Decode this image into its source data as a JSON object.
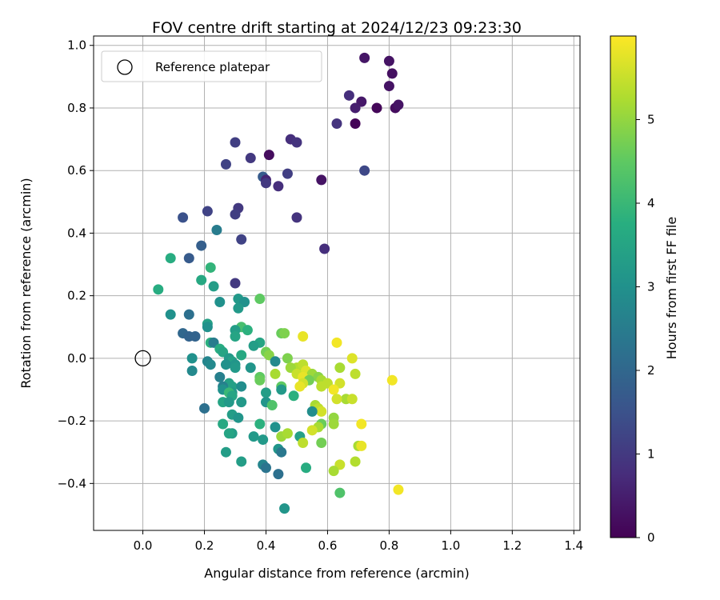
{
  "chart_data": {
    "type": "scatter",
    "title": "FOV centre drift starting at 2024/12/23 09:23:30",
    "xlabel": "Angular distance from reference (arcmin)",
    "ylabel": "Rotation from reference (arcmin)",
    "xlim": [
      -0.16,
      1.42
    ],
    "ylim": [
      -0.55,
      1.03
    ],
    "xticks": [
      0.0,
      0.2,
      0.4,
      0.6,
      0.8,
      1.0,
      1.2,
      1.4
    ],
    "xtick_labels": [
      "0.0",
      "0.2",
      "0.4",
      "0.6",
      "0.8",
      "1.0",
      "1.2",
      "1.4"
    ],
    "yticks": [
      -0.4,
      -0.2,
      0.0,
      0.2,
      0.4,
      0.6,
      0.8,
      1.0
    ],
    "ytick_labels": [
      "−0.4",
      "−0.2",
      "0.0",
      "0.2",
      "0.4",
      "0.6",
      "0.8",
      "1.0"
    ],
    "grid": true,
    "colormap": "viridis",
    "legend": {
      "placement": "top-left",
      "entries": [
        "Reference platepar"
      ]
    },
    "reference_point": {
      "x": 0.0,
      "y": 0.0
    },
    "colorbar": {
      "label": "Hours from first FF file",
      "range": [
        0,
        6.0
      ],
      "ticks": [
        0,
        1,
        2,
        3,
        4,
        5
      ],
      "tick_labels": [
        "0",
        "1",
        "2",
        "3",
        "4",
        "5"
      ]
    },
    "points": [
      {
        "x": 0.72,
        "y": 0.96,
        "c": 0.35
      },
      {
        "x": 0.8,
        "y": 0.95,
        "c": 0.3
      },
      {
        "x": 0.81,
        "y": 0.91,
        "c": 0.25
      },
      {
        "x": 0.8,
        "y": 0.87,
        "c": 0.3
      },
      {
        "x": 0.67,
        "y": 0.84,
        "c": 0.8
      },
      {
        "x": 0.71,
        "y": 0.82,
        "c": 0.4
      },
      {
        "x": 0.69,
        "y": 0.8,
        "c": 0.5
      },
      {
        "x": 0.76,
        "y": 0.8,
        "c": 0.1
      },
      {
        "x": 0.82,
        "y": 0.8,
        "c": 0.2
      },
      {
        "x": 0.83,
        "y": 0.81,
        "c": 0.3
      },
      {
        "x": 0.63,
        "y": 0.75,
        "c": 0.9
      },
      {
        "x": 0.69,
        "y": 0.75,
        "c": 0.05
      },
      {
        "x": 0.48,
        "y": 0.7,
        "c": 0.8
      },
      {
        "x": 0.5,
        "y": 0.69,
        "c": 0.9
      },
      {
        "x": 0.3,
        "y": 0.69,
        "c": 1.1
      },
      {
        "x": 0.41,
        "y": 0.65,
        "c": 0.2
      },
      {
        "x": 0.35,
        "y": 0.64,
        "c": 1.0
      },
      {
        "x": 0.27,
        "y": 0.62,
        "c": 1.2
      },
      {
        "x": 0.72,
        "y": 0.6,
        "c": 1.3
      },
      {
        "x": 0.47,
        "y": 0.59,
        "c": 1.1
      },
      {
        "x": 0.39,
        "y": 0.58,
        "c": 1.7
      },
      {
        "x": 0.4,
        "y": 0.57,
        "c": 0.6
      },
      {
        "x": 0.58,
        "y": 0.57,
        "c": 0.3
      },
      {
        "x": 0.44,
        "y": 0.55,
        "c": 0.8
      },
      {
        "x": 0.4,
        "y": 0.56,
        "c": 1.0
      },
      {
        "x": 0.31,
        "y": 0.48,
        "c": 1.0
      },
      {
        "x": 0.21,
        "y": 0.47,
        "c": 1.2
      },
      {
        "x": 0.3,
        "y": 0.46,
        "c": 1.1
      },
      {
        "x": 0.5,
        "y": 0.45,
        "c": 0.9
      },
      {
        "x": 0.13,
        "y": 0.45,
        "c": 1.5
      },
      {
        "x": 0.24,
        "y": 0.41,
        "c": 2.5
      },
      {
        "x": 0.32,
        "y": 0.38,
        "c": 1.2
      },
      {
        "x": 0.19,
        "y": 0.36,
        "c": 1.8
      },
      {
        "x": 0.59,
        "y": 0.35,
        "c": 0.8
      },
      {
        "x": 0.15,
        "y": 0.32,
        "c": 1.7
      },
      {
        "x": 0.09,
        "y": 0.32,
        "c": 3.7
      },
      {
        "x": 0.22,
        "y": 0.29,
        "c": 3.9
      },
      {
        "x": 0.19,
        "y": 0.25,
        "c": 3.6
      },
      {
        "x": 0.3,
        "y": 0.24,
        "c": 1.0
      },
      {
        "x": 0.23,
        "y": 0.23,
        "c": 3.3
      },
      {
        "x": 0.05,
        "y": 0.22,
        "c": 3.7
      },
      {
        "x": 0.31,
        "y": 0.19,
        "c": 3.2
      },
      {
        "x": 0.38,
        "y": 0.19,
        "c": 4.5
      },
      {
        "x": 0.33,
        "y": 0.18,
        "c": 3.0
      },
      {
        "x": 0.25,
        "y": 0.18,
        "c": 3.0
      },
      {
        "x": 0.31,
        "y": 0.16,
        "c": 3.2
      },
      {
        "x": 0.09,
        "y": 0.14,
        "c": 3.0
      },
      {
        "x": 0.15,
        "y": 0.14,
        "c": 2.2
      },
      {
        "x": 0.21,
        "y": 0.11,
        "c": 3.4
      },
      {
        "x": 0.21,
        "y": 0.1,
        "c": 3.0
      },
      {
        "x": 0.32,
        "y": 0.1,
        "c": 4.2
      },
      {
        "x": 0.34,
        "y": 0.09,
        "c": 3.8
      },
      {
        "x": 0.3,
        "y": 0.09,
        "c": 3.3
      },
      {
        "x": 0.45,
        "y": 0.08,
        "c": 4.6
      },
      {
        "x": 0.13,
        "y": 0.08,
        "c": 2.0
      },
      {
        "x": 0.46,
        "y": 0.08,
        "c": 4.8
      },
      {
        "x": 0.52,
        "y": 0.07,
        "c": 5.8
      },
      {
        "x": 0.3,
        "y": 0.07,
        "c": 3.5
      },
      {
        "x": 0.15,
        "y": 0.07,
        "c": 1.9
      },
      {
        "x": 0.17,
        "y": 0.07,
        "c": 1.9
      },
      {
        "x": 0.63,
        "y": 0.05,
        "c": 5.9
      },
      {
        "x": 0.38,
        "y": 0.05,
        "c": 3.5
      },
      {
        "x": 0.22,
        "y": 0.05,
        "c": 3.8
      },
      {
        "x": 0.23,
        "y": 0.05,
        "c": 2.5
      },
      {
        "x": 0.36,
        "y": 0.04,
        "c": 3.3
      },
      {
        "x": 0.25,
        "y": 0.03,
        "c": 3.7
      },
      {
        "x": 0.26,
        "y": 0.02,
        "c": 3.5
      },
      {
        "x": 0.4,
        "y": 0.02,
        "c": 4.7
      },
      {
        "x": 0.32,
        "y": 0.01,
        "c": 3.6
      },
      {
        "x": 0.41,
        "y": 0.01,
        "c": 4.9
      },
      {
        "x": 0.28,
        "y": 0.0,
        "c": 3.2
      },
      {
        "x": 0.16,
        "y": 0.0,
        "c": 3.0
      },
      {
        "x": 0.68,
        "y": 0.0,
        "c": 5.7
      },
      {
        "x": 0.47,
        "y": 0.0,
        "c": 4.8
      },
      {
        "x": 0.21,
        "y": -0.01,
        "c": 2.7
      },
      {
        "x": 0.43,
        "y": -0.01,
        "c": 2.8
      },
      {
        "x": 0.29,
        "y": -0.01,
        "c": 3.4
      },
      {
        "x": 0.22,
        "y": -0.02,
        "c": 2.8
      },
      {
        "x": 0.27,
        "y": -0.02,
        "c": 3.0
      },
      {
        "x": 0.3,
        "y": -0.02,
        "c": 3.1
      },
      {
        "x": 0.5,
        "y": -0.03,
        "c": 5.3
      },
      {
        "x": 0.52,
        "y": -0.02,
        "c": 5.4
      },
      {
        "x": 0.48,
        "y": -0.03,
        "c": 5.1
      },
      {
        "x": 0.35,
        "y": -0.03,
        "c": 3.1
      },
      {
        "x": 0.64,
        "y": -0.03,
        "c": 5.2
      },
      {
        "x": 0.3,
        "y": -0.03,
        "c": 3.2
      },
      {
        "x": 0.16,
        "y": -0.04,
        "c": 2.8
      },
      {
        "x": 0.53,
        "y": -0.04,
        "c": 5.7
      },
      {
        "x": 0.43,
        "y": -0.05,
        "c": 5.2
      },
      {
        "x": 0.5,
        "y": -0.05,
        "c": 5.5
      },
      {
        "x": 0.55,
        "y": -0.05,
        "c": 5.1
      },
      {
        "x": 0.69,
        "y": -0.05,
        "c": 5.4
      },
      {
        "x": 0.25,
        "y": -0.06,
        "c": 2.6
      },
      {
        "x": 0.52,
        "y": -0.06,
        "c": 5.8
      },
      {
        "x": 0.38,
        "y": -0.06,
        "c": 4.5
      },
      {
        "x": 0.57,
        "y": -0.06,
        "c": 4.9
      },
      {
        "x": 0.81,
        "y": -0.07,
        "c": 5.9
      },
      {
        "x": 0.38,
        "y": -0.07,
        "c": 4.6
      },
      {
        "x": 0.58,
        "y": -0.07,
        "c": 5.2
      },
      {
        "x": 0.54,
        "y": -0.07,
        "c": 4.7
      },
      {
        "x": 0.52,
        "y": -0.08,
        "c": 5.6
      },
      {
        "x": 0.28,
        "y": -0.08,
        "c": 3.4
      },
      {
        "x": 0.6,
        "y": -0.08,
        "c": 5.4
      },
      {
        "x": 0.64,
        "y": -0.08,
        "c": 5.6
      },
      {
        "x": 0.29,
        "y": -0.09,
        "c": 3.4
      },
      {
        "x": 0.26,
        "y": -0.09,
        "c": 2.6
      },
      {
        "x": 0.45,
        "y": -0.09,
        "c": 4.5
      },
      {
        "x": 0.32,
        "y": -0.09,
        "c": 2.9
      },
      {
        "x": 0.51,
        "y": -0.09,
        "c": 5.8
      },
      {
        "x": 0.58,
        "y": -0.09,
        "c": 5.4
      },
      {
        "x": 0.45,
        "y": -0.1,
        "c": 3.2
      },
      {
        "x": 0.62,
        "y": -0.1,
        "c": 5.9
      },
      {
        "x": 0.26,
        "y": -0.1,
        "c": 3.0
      },
      {
        "x": 0.29,
        "y": -0.11,
        "c": 3.2
      },
      {
        "x": 0.28,
        "y": -0.11,
        "c": 4.0
      },
      {
        "x": 0.4,
        "y": -0.11,
        "c": 3.3
      },
      {
        "x": 0.29,
        "y": -0.12,
        "c": 3.5
      },
      {
        "x": 0.49,
        "y": -0.12,
        "c": 3.8
      },
      {
        "x": 0.66,
        "y": -0.13,
        "c": 5.2
      },
      {
        "x": 0.68,
        "y": -0.13,
        "c": 5.5
      },
      {
        "x": 0.63,
        "y": -0.13,
        "c": 5.6
      },
      {
        "x": 0.26,
        "y": -0.14,
        "c": 3.5
      },
      {
        "x": 0.28,
        "y": -0.14,
        "c": 3.2
      },
      {
        "x": 0.32,
        "y": -0.14,
        "c": 3.2
      },
      {
        "x": 0.4,
        "y": -0.14,
        "c": 3.1
      },
      {
        "x": 0.42,
        "y": -0.15,
        "c": 4.3
      },
      {
        "x": 0.56,
        "y": -0.15,
        "c": 5.2
      },
      {
        "x": 0.2,
        "y": -0.16,
        "c": 2.2
      },
      {
        "x": 0.57,
        "y": -0.16,
        "c": 5.4
      },
      {
        "x": 0.58,
        "y": -0.17,
        "c": 5.6
      },
      {
        "x": 0.55,
        "y": -0.17,
        "c": 2.9
      },
      {
        "x": 0.29,
        "y": -0.18,
        "c": 3.3
      },
      {
        "x": 0.31,
        "y": -0.19,
        "c": 3.1
      },
      {
        "x": 0.62,
        "y": -0.19,
        "c": 5.0
      },
      {
        "x": 0.38,
        "y": -0.21,
        "c": 3.8
      },
      {
        "x": 0.62,
        "y": -0.21,
        "c": 5.1
      },
      {
        "x": 0.26,
        "y": -0.21,
        "c": 3.6
      },
      {
        "x": 0.71,
        "y": -0.21,
        "c": 5.9
      },
      {
        "x": 0.43,
        "y": -0.22,
        "c": 3.0
      },
      {
        "x": 0.58,
        "y": -0.21,
        "c": 4.6
      },
      {
        "x": 0.57,
        "y": -0.22,
        "c": 5.2
      },
      {
        "x": 0.55,
        "y": -0.23,
        "c": 5.6
      },
      {
        "x": 0.29,
        "y": -0.24,
        "c": 3.3
      },
      {
        "x": 0.28,
        "y": -0.24,
        "c": 3.5
      },
      {
        "x": 0.36,
        "y": -0.25,
        "c": 3.2
      },
      {
        "x": 0.45,
        "y": -0.25,
        "c": 5.1
      },
      {
        "x": 0.51,
        "y": -0.25,
        "c": 3.4
      },
      {
        "x": 0.47,
        "y": -0.24,
        "c": 5.2
      },
      {
        "x": 0.39,
        "y": -0.26,
        "c": 3.2
      },
      {
        "x": 0.52,
        "y": -0.27,
        "c": 5.4
      },
      {
        "x": 0.58,
        "y": -0.27,
        "c": 4.7
      },
      {
        "x": 0.7,
        "y": -0.28,
        "c": 5.2
      },
      {
        "x": 0.71,
        "y": -0.28,
        "c": 5.8
      },
      {
        "x": 0.44,
        "y": -0.29,
        "c": 3.1
      },
      {
        "x": 0.27,
        "y": -0.3,
        "c": 3.3
      },
      {
        "x": 0.45,
        "y": -0.3,
        "c": 2.4
      },
      {
        "x": 0.69,
        "y": -0.33,
        "c": 5.3
      },
      {
        "x": 0.32,
        "y": -0.33,
        "c": 3.3
      },
      {
        "x": 0.64,
        "y": -0.34,
        "c": 5.5
      },
      {
        "x": 0.39,
        "y": -0.34,
        "c": 2.7
      },
      {
        "x": 0.4,
        "y": -0.35,
        "c": 2.3
      },
      {
        "x": 0.53,
        "y": -0.35,
        "c": 3.7
      },
      {
        "x": 0.62,
        "y": -0.36,
        "c": 5.2
      },
      {
        "x": 0.44,
        "y": -0.37,
        "c": 2.2
      },
      {
        "x": 0.83,
        "y": -0.42,
        "c": 5.9
      },
      {
        "x": 0.64,
        "y": -0.43,
        "c": 4.3
      },
      {
        "x": 0.46,
        "y": -0.48,
        "c": 3.1
      }
    ]
  }
}
